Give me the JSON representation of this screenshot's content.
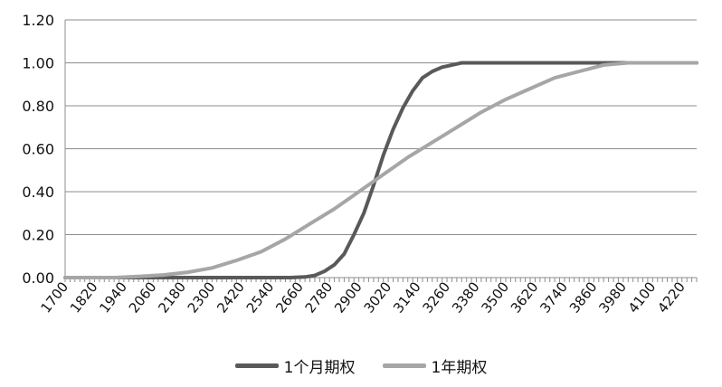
{
  "chart_data": {
    "type": "line",
    "title": "",
    "xlabel": "",
    "ylabel": "",
    "ylim": [
      0,
      1.2
    ],
    "yticks": [
      "0.00",
      "0.20",
      "0.40",
      "0.60",
      "0.80",
      "1.00",
      "1.20"
    ],
    "xlim": [
      1700,
      4280
    ],
    "xticks": [
      "1700",
      "1820",
      "1940",
      "2060",
      "2180",
      "2300",
      "2420",
      "2540",
      "2660",
      "2780",
      "2900",
      "3020",
      "3140",
      "3260",
      "3380",
      "3500",
      "3620",
      "3740",
      "3860",
      "3980",
      "4100",
      "4220"
    ],
    "grid": "horizontal",
    "legend_position": "bottom",
    "series": [
      {
        "name": "1个月期权",
        "color": "#595959",
        "points": [
          [
            1700,
            0
          ],
          [
            2500,
            0
          ],
          [
            2620,
            0
          ],
          [
            2680,
            0.003
          ],
          [
            2720,
            0.01
          ],
          [
            2760,
            0.03
          ],
          [
            2800,
            0.06
          ],
          [
            2840,
            0.11
          ],
          [
            2880,
            0.2
          ],
          [
            2920,
            0.3
          ],
          [
            2960,
            0.43
          ],
          [
            3000,
            0.57
          ],
          [
            3040,
            0.69
          ],
          [
            3080,
            0.79
          ],
          [
            3120,
            0.87
          ],
          [
            3160,
            0.93
          ],
          [
            3200,
            0.96
          ],
          [
            3240,
            0.98
          ],
          [
            3280,
            0.99
          ],
          [
            3320,
            1.0
          ],
          [
            4280,
            1.0
          ]
        ]
      },
      {
        "name": "1年期权",
        "color": "#a6a6a6",
        "points": [
          [
            1700,
            0
          ],
          [
            1900,
            0
          ],
          [
            2000,
            0.005
          ],
          [
            2100,
            0.012
          ],
          [
            2200,
            0.025
          ],
          [
            2300,
            0.045
          ],
          [
            2400,
            0.08
          ],
          [
            2500,
            0.12
          ],
          [
            2600,
            0.18
          ],
          [
            2700,
            0.25
          ],
          [
            2800,
            0.32
          ],
          [
            2900,
            0.4
          ],
          [
            3000,
            0.48
          ],
          [
            3100,
            0.56
          ],
          [
            3200,
            0.63
          ],
          [
            3300,
            0.7
          ],
          [
            3400,
            0.77
          ],
          [
            3500,
            0.83
          ],
          [
            3600,
            0.88
          ],
          [
            3700,
            0.93
          ],
          [
            3800,
            0.96
          ],
          [
            3900,
            0.99
          ],
          [
            4000,
            1.0
          ],
          [
            4280,
            1.0
          ]
        ]
      }
    ]
  }
}
